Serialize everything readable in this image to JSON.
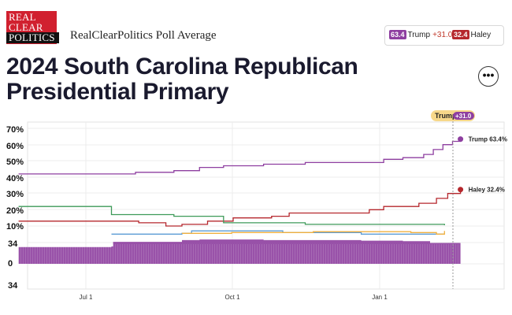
{
  "brand": {
    "logo_lines": [
      "REAL",
      "CLEAR",
      "POLITICS"
    ],
    "name": "RealClearPolitics Poll Average"
  },
  "title": "2024 South Carolina Republican Presidential Primary",
  "legend": {
    "items": [
      {
        "value": "63.4",
        "name": "Trump",
        "spread": "+31.0",
        "color": "#8e3fa0"
      },
      {
        "value": "32.4",
        "name": "Haley",
        "spread": "",
        "color": "#b5272d"
      }
    ]
  },
  "more_button": {
    "label": "•••"
  },
  "hover_label": {
    "name": "Trump",
    "spread": "+31.0"
  },
  "chart_data": {
    "type": "line",
    "x_ticks": [
      "Jul 1",
      "Oct 1",
      "Jan 1"
    ],
    "y_ticks": [
      "70%",
      "60%",
      "50%",
      "40%",
      "30%",
      "20%",
      "10%"
    ],
    "ylim": [
      0,
      70
    ],
    "spread_ticks": [
      "34",
      "0",
      "34"
    ],
    "colors": {
      "trump": "#8e3fa0",
      "haley": "#b5272d",
      "green": "#3d9a58",
      "blue": "#5b9bd5",
      "orange": "#f0b040",
      "spread": "#8e3fa0"
    },
    "series": [
      {
        "key": "trump",
        "color": "#8e3fa0",
        "points": [
          [
            "2023-05-20",
            42
          ],
          [
            "2023-07-25",
            42
          ],
          [
            "2023-08-01",
            43
          ],
          [
            "2023-08-25",
            44
          ],
          [
            "2023-09-10",
            46
          ],
          [
            "2023-09-25",
            47
          ],
          [
            "2023-10-20",
            48
          ],
          [
            "2023-11-15",
            49
          ],
          [
            "2023-12-25",
            49
          ],
          [
            "2024-01-03",
            51
          ],
          [
            "2024-01-15",
            52
          ],
          [
            "2024-01-28",
            54
          ],
          [
            "2024-02-03",
            57
          ],
          [
            "2024-02-09",
            60
          ],
          [
            "2024-02-15",
            62
          ],
          [
            "2024-02-20",
            63.4
          ]
        ],
        "end_label": "Trump 63.4%"
      },
      {
        "key": "haley",
        "color": "#b5272d",
        "points": [
          [
            "2023-05-20",
            13
          ],
          [
            "2023-08-01",
            13
          ],
          [
            "2023-08-03",
            12
          ],
          [
            "2023-08-20",
            10
          ],
          [
            "2023-08-30",
            11
          ],
          [
            "2023-09-15",
            13
          ],
          [
            "2023-10-01",
            15
          ],
          [
            "2023-10-25",
            16
          ],
          [
            "2023-11-05",
            18
          ],
          [
            "2023-12-25",
            20
          ],
          [
            "2024-01-03",
            22
          ],
          [
            "2024-01-25",
            24
          ],
          [
            "2024-02-05",
            27
          ],
          [
            "2024-02-12",
            30
          ],
          [
            "2024-02-20",
            32.4
          ]
        ],
        "end_label": "Haley 32.4%"
      },
      {
        "key": "green",
        "color": "#3d9a58",
        "points": [
          [
            "2023-05-20",
            22
          ],
          [
            "2023-07-15",
            22
          ],
          [
            "2023-07-17",
            17
          ],
          [
            "2023-08-25",
            16
          ],
          [
            "2023-09-25",
            12
          ],
          [
            "2023-11-15",
            11
          ],
          [
            "2024-01-15",
            11
          ],
          [
            "2024-02-10",
            10.5
          ]
        ]
      },
      {
        "key": "blue",
        "color": "#5b9bd5",
        "points": [
          [
            "2023-07-17",
            5
          ],
          [
            "2023-08-30",
            5.5
          ],
          [
            "2023-09-05",
            7
          ],
          [
            "2023-11-01",
            6
          ],
          [
            "2023-12-20",
            5
          ],
          [
            "2024-02-10",
            5
          ]
        ]
      },
      {
        "key": "orange",
        "color": "#f0b040",
        "points": [
          [
            "2023-08-30",
            5.5
          ],
          [
            "2023-09-30",
            6
          ],
          [
            "2023-11-20",
            6.5
          ],
          [
            "2024-01-20",
            6
          ],
          [
            "2024-02-05",
            5
          ],
          [
            "2024-02-10",
            7
          ]
        ]
      }
    ],
    "spread": {
      "color": "#8e3fa0",
      "points": [
        [
          "2023-05-20",
          29
        ],
        [
          "2023-07-17",
          30
        ],
        [
          "2023-07-18",
          38
        ],
        [
          "2023-08-30",
          41
        ],
        [
          "2023-09-10",
          42
        ],
        [
          "2023-10-20",
          41
        ],
        [
          "2023-12-20",
          40
        ],
        [
          "2024-01-15",
          39
        ],
        [
          "2024-02-01",
          36
        ],
        [
          "2024-02-20",
          31
        ]
      ]
    }
  }
}
